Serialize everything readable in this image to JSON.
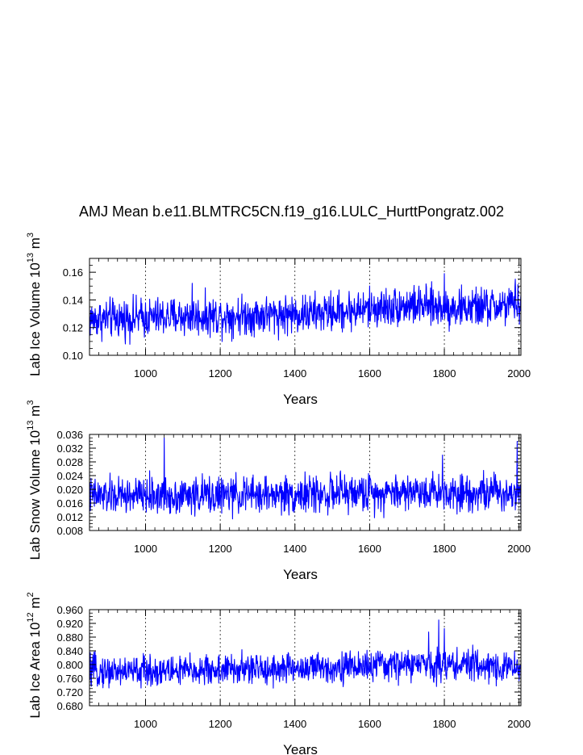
{
  "title": "AMJ Mean b.e11.BLMTRC5CN.f19_g16.LULC_HurttPongratz.002",
  "line_color": "#0000ff",
  "chart_data": [
    {
      "type": "line",
      "name": "ice-volume",
      "xlabel": "Years",
      "ylabel_main": "Lab Ice Volume 10",
      "ylabel_exp": "13",
      "ylabel_unit": " m",
      "ylabel_unit_exp": "3",
      "xlim": [
        850,
        2005
      ],
      "ylim": [
        0.1,
        0.17
      ],
      "xticks": [
        1000,
        1200,
        1400,
        1600,
        1800,
        2000
      ],
      "yticks": [
        0.1,
        0.12,
        0.14,
        0.16
      ],
      "ytick_labels": [
        "0.10",
        "0.12",
        "0.14",
        "0.16"
      ],
      "x_range": [
        850,
        2005
      ],
      "mean": 0.13,
      "amplitude": 0.01,
      "trend_points": [
        [
          850,
          0.126
        ],
        [
          1100,
          0.128
        ],
        [
          1450,
          0.13
        ],
        [
          1700,
          0.136
        ],
        [
          1850,
          0.134
        ],
        [
          2005,
          0.136
        ]
      ],
      "spikes": [
        [
          1125,
          0.152
        ],
        [
          1800,
          0.159
        ],
        [
          1990,
          0.155
        ]
      ]
    },
    {
      "type": "line",
      "name": "snow-volume",
      "xlabel": "Years",
      "ylabel_main": "Lab Snow Volume 10",
      "ylabel_exp": "13",
      "ylabel_unit": " m",
      "ylabel_unit_exp": "3",
      "xlim": [
        850,
        2005
      ],
      "ylim": [
        0.008,
        0.036
      ],
      "xticks": [
        1000,
        1200,
        1400,
        1600,
        1800,
        2000
      ],
      "yticks": [
        0.008,
        0.012,
        0.016,
        0.02,
        0.024,
        0.028,
        0.032,
        0.036
      ],
      "ytick_labels": [
        "0.008",
        "0.012",
        "0.016",
        "0.020",
        "0.024",
        "0.028",
        "0.032",
        "0.036"
      ],
      "x_range": [
        850,
        2005
      ],
      "mean": 0.0185,
      "amplitude": 0.0038,
      "trend_points": [
        [
          850,
          0.018
        ],
        [
          1400,
          0.0185
        ],
        [
          1750,
          0.0195
        ],
        [
          2005,
          0.019
        ]
      ],
      "spikes": [
        [
          1050,
          0.035
        ],
        [
          1795,
          0.03
        ],
        [
          1995,
          0.034
        ]
      ]
    },
    {
      "type": "line",
      "name": "ice-area",
      "xlabel": "Years",
      "ylabel_main": "Lab Ice Area 10",
      "ylabel_exp": "12",
      "ylabel_unit": " m",
      "ylabel_unit_exp": "2",
      "xlim": [
        850,
        2005
      ],
      "ylim": [
        0.68,
        0.96
      ],
      "xticks": [
        1000,
        1200,
        1400,
        1600,
        1800,
        2000
      ],
      "yticks": [
        0.68,
        0.72,
        0.76,
        0.8,
        0.84,
        0.88,
        0.92,
        0.96
      ],
      "ytick_labels": [
        "0.680",
        "0.720",
        "0.760",
        "0.800",
        "0.840",
        "0.880",
        "0.920",
        "0.960"
      ],
      "x_range": [
        850,
        2005
      ],
      "mean": 0.785,
      "amplitude": 0.032,
      "trend_points": [
        [
          850,
          0.78
        ],
        [
          1100,
          0.782
        ],
        [
          1450,
          0.79
        ],
        [
          1700,
          0.8
        ],
        [
          1850,
          0.8
        ],
        [
          2005,
          0.79
        ]
      ],
      "spikes": [
        [
          1785,
          0.93
        ],
        [
          1800,
          0.905
        ],
        [
          1758,
          0.895
        ]
      ]
    }
  ]
}
